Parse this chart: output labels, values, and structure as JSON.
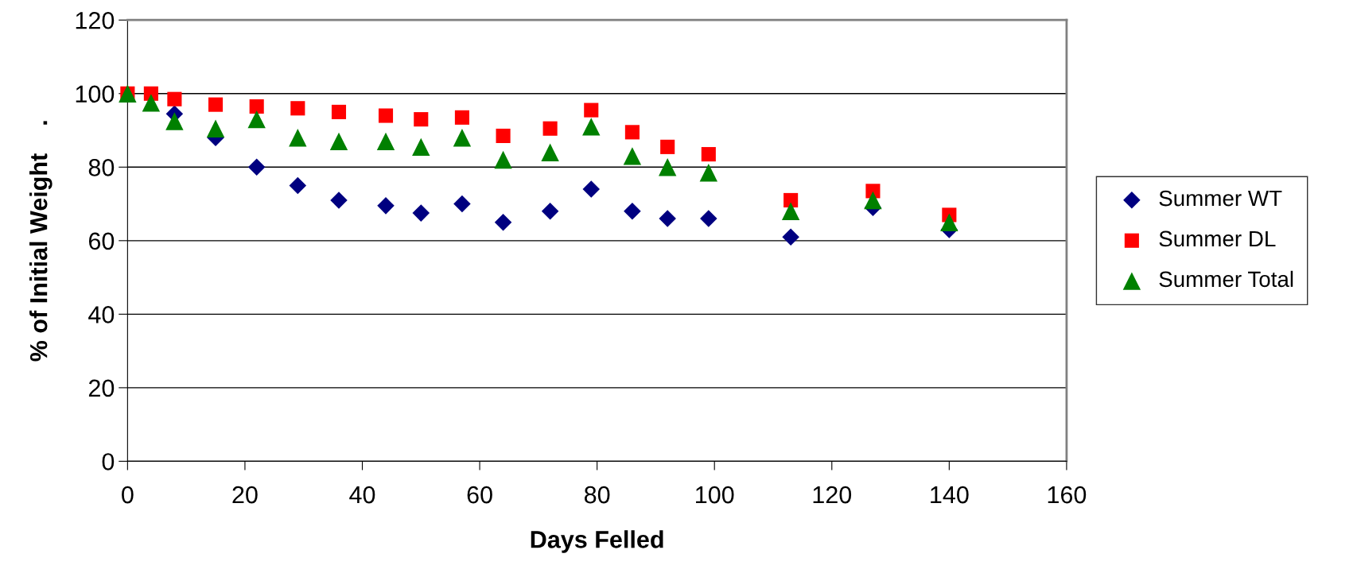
{
  "chart_data": {
    "type": "scatter",
    "xlabel": "Days Felled",
    "ylabel": "% of Initial Weight    .",
    "x": [
      0,
      4,
      8,
      15,
      22,
      29,
      36,
      44,
      50,
      57,
      64,
      72,
      79,
      86,
      92,
      99,
      113,
      127,
      140
    ],
    "xlim": [
      0,
      160
    ],
    "xticks": [
      0,
      20,
      40,
      60,
      80,
      100,
      120,
      140,
      160
    ],
    "ylim": [
      0,
      120
    ],
    "yticks": [
      0,
      20,
      40,
      60,
      80,
      100,
      120
    ],
    "grid": "y",
    "legend": "right",
    "series": [
      {
        "name": "Summer WT",
        "color": "#000080",
        "marker": "diamond",
        "values": [
          null,
          null,
          94.5,
          88,
          80,
          75,
          71,
          69.5,
          67.5,
          70,
          65,
          68,
          74,
          68,
          66,
          66,
          61,
          69,
          63
        ]
      },
      {
        "name": "Summer DL",
        "color": "#ff0000",
        "marker": "square",
        "values": [
          100,
          100,
          98.5,
          97,
          96.5,
          96,
          95,
          94,
          93,
          93.5,
          88.5,
          90.5,
          95.5,
          89.5,
          85.5,
          83.5,
          71,
          73.5,
          67
        ]
      },
      {
        "name": "Summer Total",
        "color": "#008000",
        "marker": "triangle",
        "values": [
          100,
          97.5,
          92.5,
          90.5,
          93,
          88,
          87,
          87,
          85.5,
          88,
          82,
          84,
          91,
          83,
          80,
          78.5,
          68,
          71,
          65
        ]
      }
    ]
  }
}
